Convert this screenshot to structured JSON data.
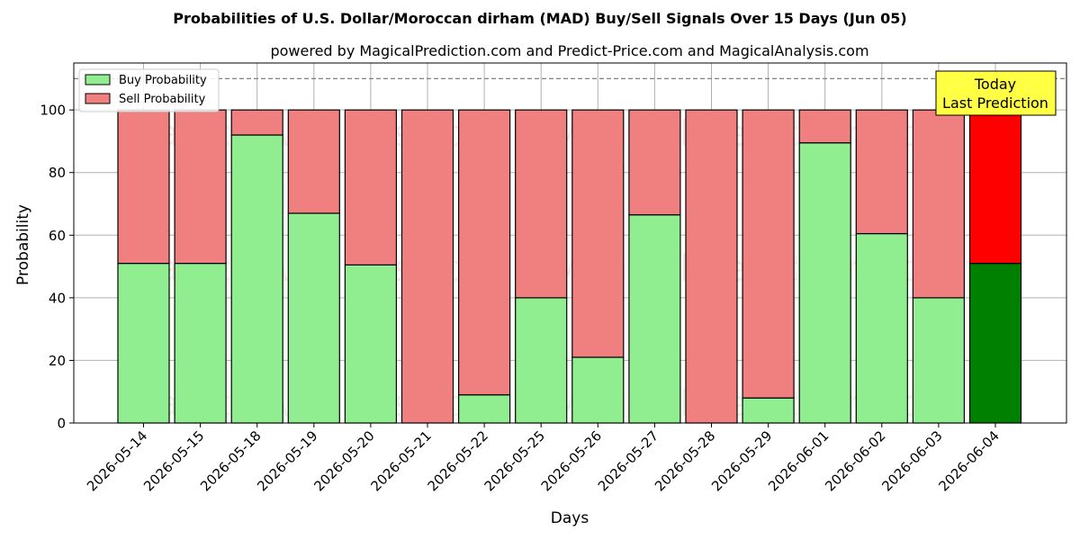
{
  "chart_data": {
    "type": "bar",
    "stacked": true,
    "title": "Probabilities of U.S. Dollar/Moroccan dirham (MAD) Buy/Sell Signals Over 15 Days (Jun 05)",
    "subtitle": "powered by MagicalPrediction.com and Predict-Price.com and MagicalAnalysis.com",
    "xlabel": "Days",
    "ylabel": "Probability",
    "ylim": [
      0,
      115
    ],
    "yticks": [
      0,
      20,
      40,
      60,
      80,
      100
    ],
    "reference_line": 110,
    "grid": true,
    "legend_position": "top-left",
    "categories": [
      "2026-05-14",
      "2026-05-15",
      "2026-05-18",
      "2026-05-19",
      "2026-05-20",
      "2026-05-21",
      "2026-05-22",
      "2026-05-25",
      "2026-05-26",
      "2026-05-27",
      "2026-05-28",
      "2026-05-29",
      "2026-06-01",
      "2026-06-02",
      "2026-06-03",
      "2026-06-04"
    ],
    "series": [
      {
        "name": "Buy Probability",
        "values": [
          51,
          51,
          92,
          67,
          50.5,
          0,
          9,
          40,
          21,
          66.5,
          0,
          8,
          89.5,
          60.5,
          40,
          51
        ]
      },
      {
        "name": "Sell Probability",
        "values": [
          49,
          49,
          8,
          33,
          49.5,
          100,
          91,
          60,
          79,
          33.5,
          100,
          92,
          10.5,
          39.5,
          60,
          49
        ]
      }
    ],
    "colors": {
      "buy": "#90ee90",
      "sell": "#f08080",
      "buy_today": "#008000",
      "sell_today": "#ff0000",
      "today_box": "#ffff44"
    },
    "today_annotation": [
      "Today",
      "Last Prediction"
    ],
    "watermarks": [
      "MagicalAnalysis.com",
      "MagicalPrediction.com"
    ]
  }
}
